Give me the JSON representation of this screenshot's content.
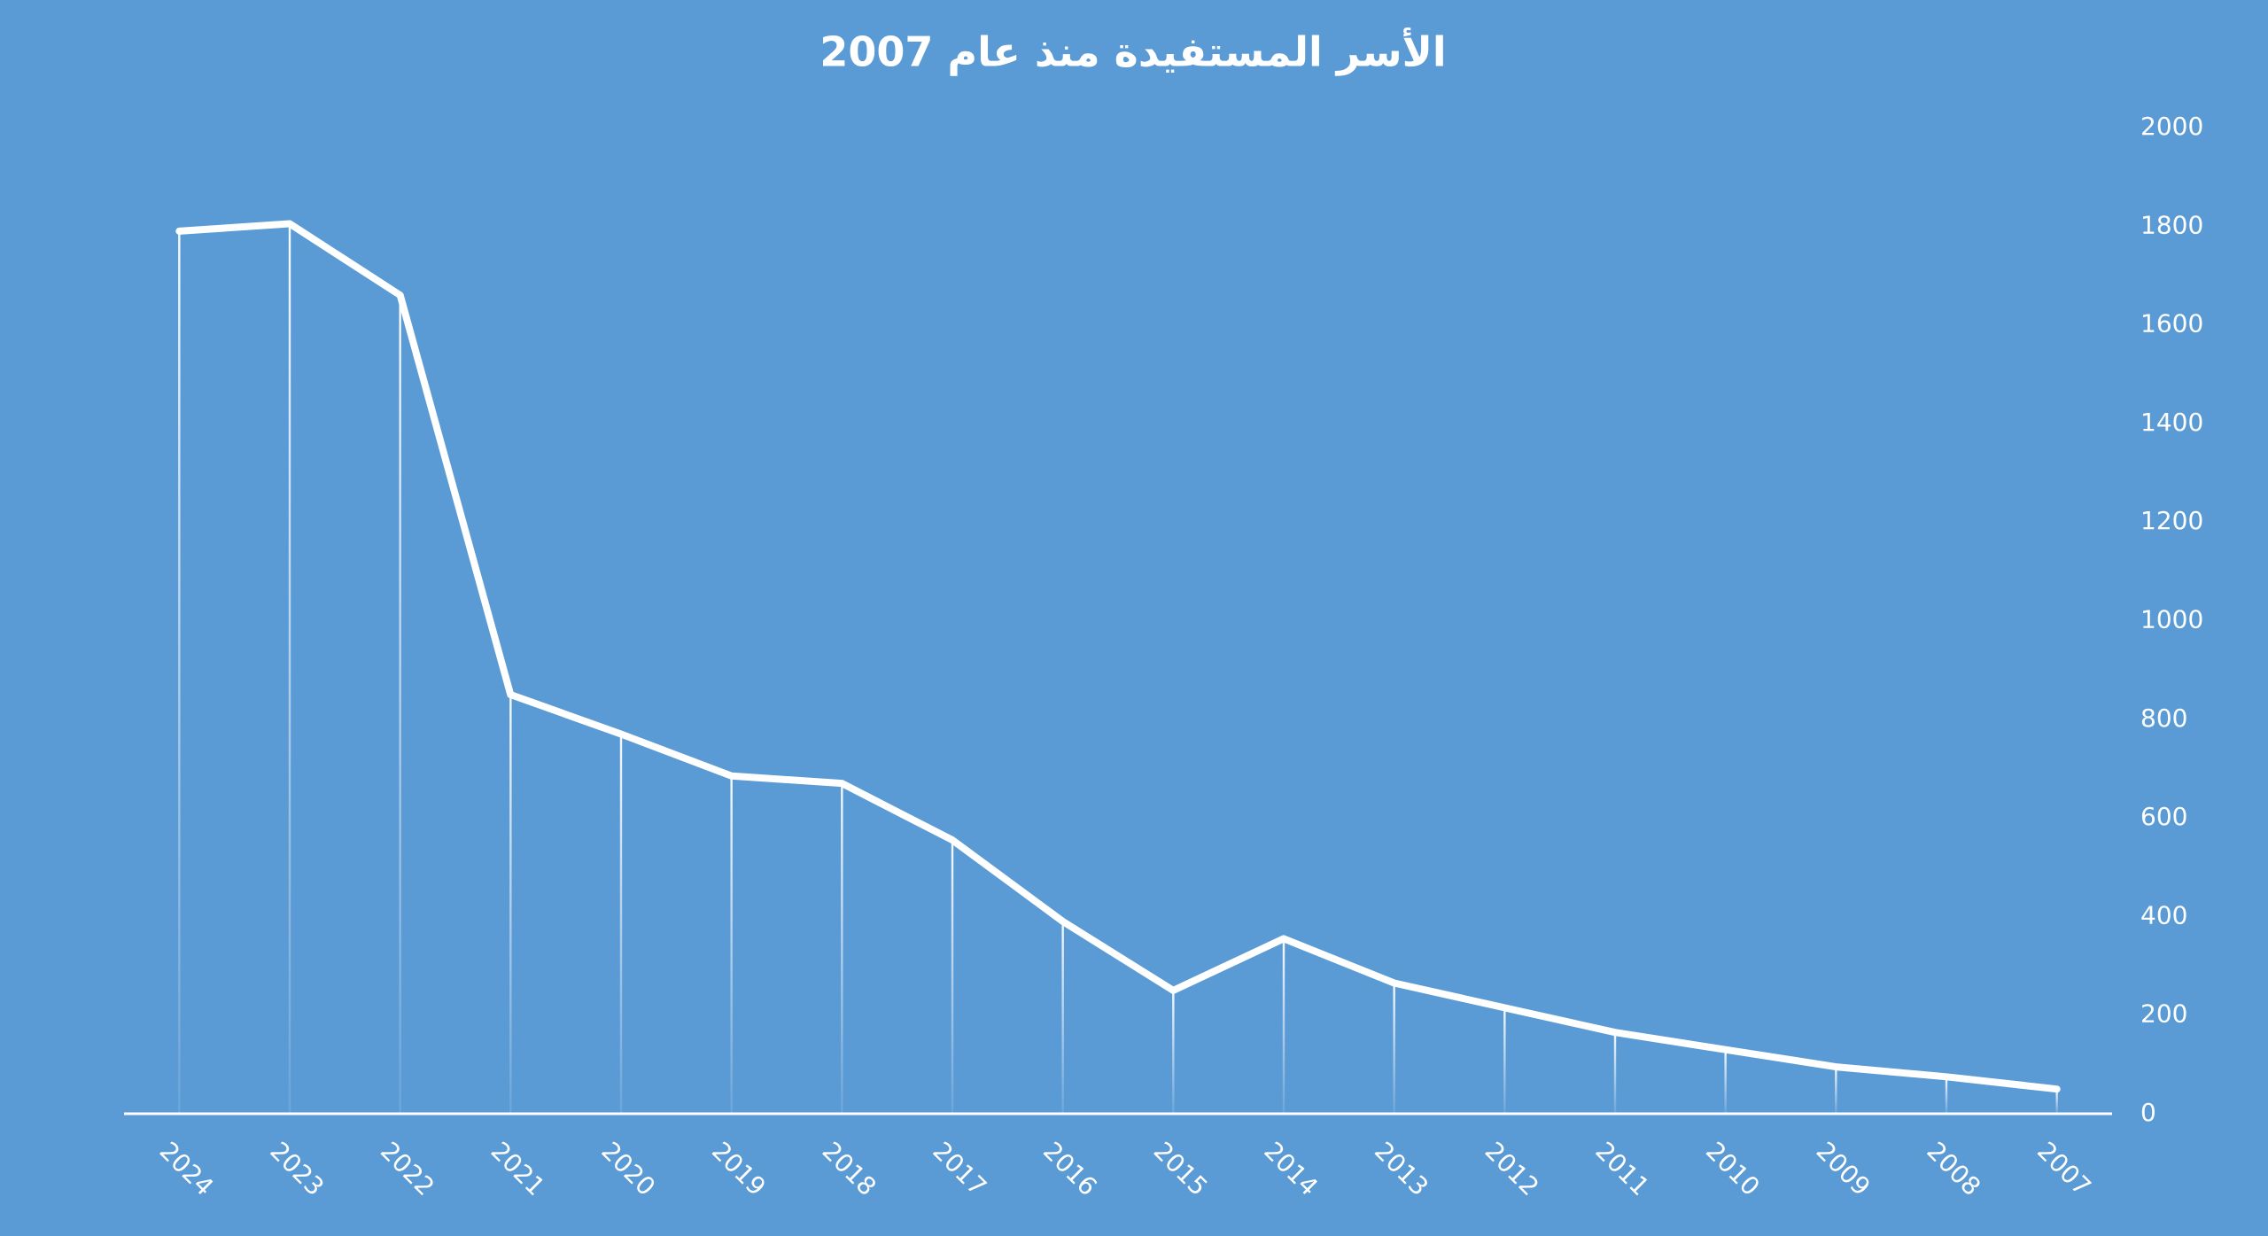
{
  "chart_data": {
    "type": "line",
    "title": "الأسر المستفيدة منذ عام 2007",
    "categories": [
      "2024",
      "2023",
      "2022",
      "2021",
      "2020",
      "2019",
      "2018",
      "2017",
      "2016",
      "2015",
      "2014",
      "2013",
      "2012",
      "2011",
      "2010",
      "2009",
      "2008",
      "2007"
    ],
    "values": [
      1790,
      1805,
      1660,
      850,
      770,
      685,
      670,
      555,
      390,
      250,
      355,
      265,
      215,
      165,
      130,
      95,
      75,
      50
    ],
    "color": "#ffffff",
    "ylim": [
      0,
      2000
    ],
    "yticks": [
      0,
      200,
      400,
      600,
      800,
      1000,
      1200,
      1400,
      1600,
      1800,
      2000
    ],
    "y_axis_side": "right",
    "drop_lines": true
  }
}
